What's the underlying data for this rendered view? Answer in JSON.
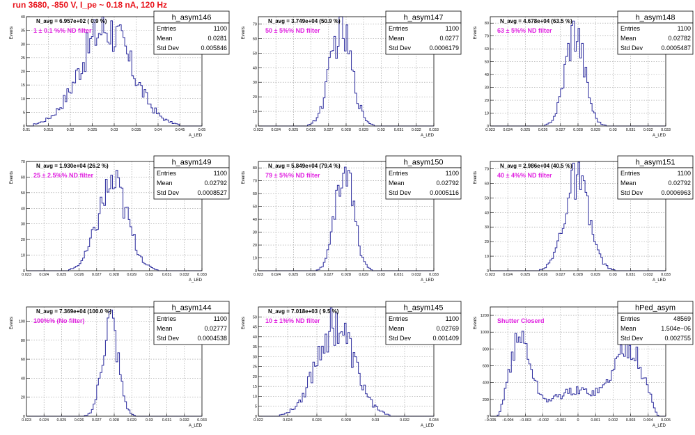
{
  "page": {
    "run_title": "run 3680,  -850 V, I_pe ~ 0.18 nA, 120 Hz"
  },
  "colors": {
    "hist": "#2a2a9c",
    "filter_label": "#e020e0",
    "title": "#e8141c",
    "grid": "#9a9a9a"
  },
  "stats_labels": {
    "entries": "Entries",
    "mean": "Mean",
    "std": "Std Dev"
  },
  "axis_text": {
    "y": "Events",
    "x": "A_LED"
  },
  "chart_data": [
    {
      "type": "histogram",
      "name": "h_asym146",
      "entries": "1100",
      "mean": "0.0281",
      "std": "0.005846",
      "n_avg": "N_avg = 6.957e+02 ( 0.9 %)",
      "label": "1 ± 0.1 %% ND filter",
      "xlim": [
        0.01,
        0.05
      ],
      "ylim": [
        0,
        40
      ],
      "xticks": [
        "0.01",
        "0.015",
        "0.02",
        "0.025",
        "0.03",
        "0.035",
        "0.04",
        "0.045",
        "0.05"
      ],
      "yticks": [
        "0",
        "5",
        "10",
        "15",
        "20",
        "25",
        "30",
        "35",
        "40"
      ],
      "center": 0.0281,
      "sigma": 0.0058,
      "peak": 36
    },
    {
      "type": "histogram",
      "name": "h_asym147",
      "entries": "1100",
      "mean": "0.0277",
      "std": "0.0006179",
      "n_avg": "N_avg = 3.749e+04 (50.9 %)",
      "label": "50 ± 5%% ND filter",
      "xlim": [
        0.023,
        0.033
      ],
      "ylim": [
        0,
        75
      ],
      "xticks": [
        "0.023",
        "0.024",
        "0.025",
        "0.026",
        "0.027",
        "0.028",
        "0.029",
        "0.03",
        "0.031",
        "0.032",
        "0.033"
      ],
      "yticks": [
        "0",
        "10",
        "20",
        "30",
        "40",
        "50",
        "60",
        "70"
      ],
      "center": 0.0277,
      "sigma": 0.00062,
      "peak": 66
    },
    {
      "type": "histogram",
      "name": "h_asym148",
      "entries": "1100",
      "mean": "0.02782",
      "std": "0.0005487",
      "n_avg": "N_avg = 4.678e+04 (63.5 %)",
      "label": "63 ± 5%% ND filter",
      "xlim": [
        0.023,
        0.033
      ],
      "ylim": [
        0,
        85
      ],
      "xticks": [
        "0.023",
        "0.024",
        "0.025",
        "0.026",
        "0.027",
        "0.028",
        "0.029",
        "0.03",
        "0.031",
        "0.032",
        "0.033"
      ],
      "yticks": [
        "0",
        "10",
        "20",
        "30",
        "40",
        "50",
        "60",
        "70",
        "80"
      ],
      "center": 0.02782,
      "sigma": 0.00055,
      "peak": 75
    },
    {
      "type": "histogram",
      "name": "h_asym149",
      "entries": "1100",
      "mean": "0.02792",
      "std": "0.0008527",
      "n_avg": "N_avg = 1.930e+04 (26.2 %)",
      "label": "25 ± 2.5%% ND filter",
      "xlim": [
        0.023,
        0.033
      ],
      "ylim": [
        0,
        70
      ],
      "xticks": [
        "0.023",
        "0.024",
        "0.025",
        "0.026",
        "0.027",
        "0.028",
        "0.029",
        "0.03",
        "0.031",
        "0.032",
        "0.033"
      ],
      "yticks": [
        "0",
        "10",
        "20",
        "30",
        "40",
        "50",
        "60",
        "70"
      ],
      "center": 0.02792,
      "sigma": 0.00085,
      "peak": 55
    },
    {
      "type": "histogram",
      "name": "h_asym150",
      "entries": "1100",
      "mean": "0.02792",
      "std": "0.0005116",
      "n_avg": "N_avg = 5.849e+04 (79.4 %)",
      "label": "79 ± 5%% ND filter",
      "xlim": [
        0.023,
        0.033
      ],
      "ylim": [
        0,
        85
      ],
      "xticks": [
        "0.023",
        "0.024",
        "0.025",
        "0.026",
        "0.027",
        "0.028",
        "0.029",
        "0.03",
        "0.031",
        "0.032",
        "0.033"
      ],
      "yticks": [
        "0",
        "10",
        "20",
        "30",
        "40",
        "50",
        "60",
        "70",
        "80"
      ],
      "center": 0.02792,
      "sigma": 0.00051,
      "peak": 80
    },
    {
      "type": "histogram",
      "name": "h_asym151",
      "entries": "1100",
      "mean": "0.02792",
      "std": "0.0006963",
      "n_avg": "N_avg = 2.986e+04 (40.5 %)",
      "label": "40 ± 4%% ND filter",
      "xlim": [
        0.023,
        0.033
      ],
      "ylim": [
        0,
        75
      ],
      "xticks": [
        "0.023",
        "0.024",
        "0.025",
        "0.026",
        "0.027",
        "0.028",
        "0.029",
        "0.03",
        "0.031",
        "0.032",
        "0.033"
      ],
      "yticks": [
        "0",
        "10",
        "20",
        "30",
        "40",
        "50",
        "60",
        "70"
      ],
      "center": 0.02792,
      "sigma": 0.0007,
      "peak": 62
    },
    {
      "type": "histogram",
      "name": "h_asym144",
      "entries": "1100",
      "mean": "0.02777",
      "std": "0.0004538",
      "n_avg": "N_avg = 7.369e+04 (100.0 %)",
      "label": "100%% (No filter)",
      "xlim": [
        0.023,
        0.033
      ],
      "ylim": [
        0,
        115
      ],
      "xticks": [
        "0.023",
        "0.024",
        "0.025",
        "0.026",
        "0.027",
        "0.028",
        "0.029",
        "0.03",
        "0.031",
        "0.032",
        "0.033"
      ],
      "yticks": [
        "0",
        "20",
        "40",
        "60",
        "80",
        "100"
      ],
      "center": 0.02777,
      "sigma": 0.00045,
      "peak": 100
    },
    {
      "type": "histogram",
      "name": "h_asym145",
      "entries": "1100",
      "mean": "0.02769",
      "std": "0.001409",
      "n_avg": "N_avg = 7.018e+03 ( 9.5 %)",
      "label": "10 ± 1%% ND filter",
      "xlim": [
        0.022,
        0.035
      ],
      "ylim": [
        0,
        55
      ],
      "xticks": [
        "0.022",
        "0.024",
        "0.026",
        "0.028",
        "0.03",
        "0.032",
        "0.034"
      ],
      "yticks": [
        "0",
        "5",
        "10",
        "15",
        "20",
        "25",
        "30",
        "35",
        "40",
        "45",
        "50"
      ],
      "center": 0.02769,
      "sigma": 0.0014,
      "peak": 46
    },
    {
      "type": "histogram",
      "name": "hPed_asym",
      "entries": "48569",
      "mean": "1.504e−06",
      "std": "0.002755",
      "n_avg": "",
      "label": "Shutter Closerd",
      "xlim": [
        -0.005,
        0.005
      ],
      "ylim": [
        0,
        1300
      ],
      "xticks": [
        "−0.005",
        "−0.004",
        "−0.003",
        "−0.002",
        "−0.001",
        "0",
        "0.001",
        "0.002",
        "0.003",
        "0.004",
        "0.005"
      ],
      "yticks": [
        "0",
        "200",
        "400",
        "600",
        "800",
        "1000",
        "1200"
      ],
      "center": 0.0,
      "sigma": 0.0028,
      "peak": 1200,
      "bimodal": true
    }
  ]
}
